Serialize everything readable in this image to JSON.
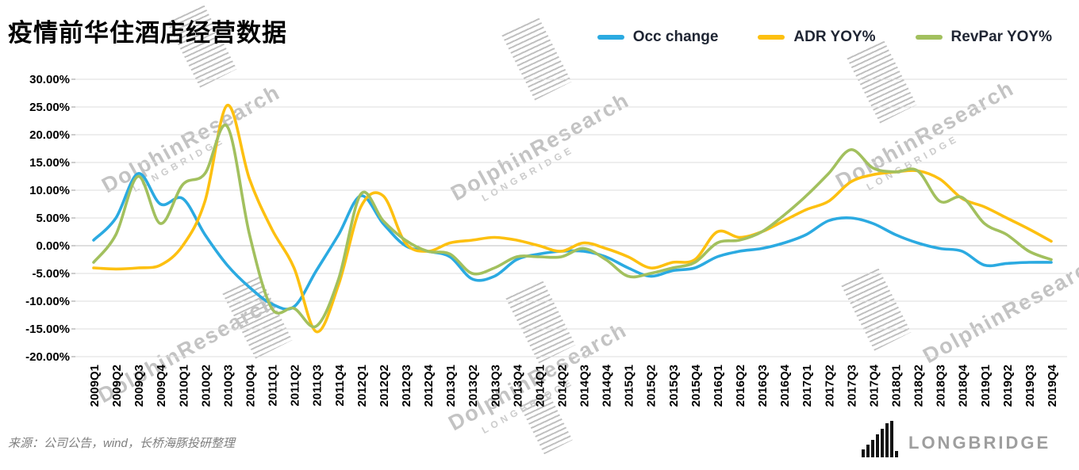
{
  "title": "疫情前华住酒店经营数据",
  "source_note": "来源：公司公告，wind，长桥海豚投研整理",
  "brand": {
    "logo_text": "LONGBRIDGE"
  },
  "watermarks": {
    "dolphin": "DolphinResearch",
    "longbridge": "LONGBRIDGE"
  },
  "chart_data": {
    "type": "line",
    "title": "疫情前华住酒店经营数据",
    "xlabel": "",
    "ylabel": "",
    "ylim": [
      -20,
      30
    ],
    "ytick_step": 5,
    "ytick_format": "percent-2dp",
    "grid": true,
    "legend_position": "top-right",
    "categories": [
      "2009Q1",
      "2009Q2",
      "2009Q3",
      "2009Q4",
      "2010Q1",
      "2010Q2",
      "2010Q3",
      "2010Q4",
      "2011Q1",
      "2011Q2",
      "2011Q3",
      "2011Q4",
      "2012Q1",
      "2012Q2",
      "2012Q3",
      "2012Q4",
      "2013Q1",
      "2013Q2",
      "2013Q3",
      "2013Q4",
      "2014Q1",
      "2014Q2",
      "2014Q3",
      "2014Q4",
      "2015Q1",
      "2015Q2",
      "2015Q3",
      "2015Q4",
      "2016Q1",
      "2016Q2",
      "2016Q3",
      "2016Q4",
      "2017Q1",
      "2017Q2",
      "2017Q3",
      "2017Q4",
      "2018Q1",
      "2018Q2",
      "2018Q3",
      "2018Q4",
      "2019Q1",
      "2019Q2",
      "2019Q3",
      "2019Q4"
    ],
    "series": [
      {
        "name": "Occ change",
        "color": "#2BAAE1",
        "values": [
          1,
          5,
          13,
          7.5,
          8.5,
          2,
          -3.5,
          -7.5,
          -10.5,
          -11,
          -4.5,
          2,
          9,
          4,
          0,
          -1,
          -2,
          -6,
          -5.5,
          -2.5,
          -1.5,
          -1,
          -1,
          -2,
          -4,
          -5.5,
          -4.5,
          -4,
          -2,
          -1,
          -0.5,
          0.5,
          2,
          4.5,
          5,
          4,
          2,
          0.5,
          -0.5,
          -1,
          -3.5,
          -3.2,
          -3,
          -3
        ]
      },
      {
        "name": "ADR YOY%",
        "color": "#FDC010",
        "values": [
          -4,
          -4.2,
          -4,
          -3.5,
          0,
          8,
          25.3,
          12,
          3,
          -4,
          -15.5,
          -7,
          7,
          9,
          0.5,
          -1,
          0.5,
          1,
          1.5,
          1,
          0,
          -1,
          0.5,
          -0.5,
          -2,
          -4,
          -3,
          -2.5,
          2.5,
          1.5,
          2.5,
          4.5,
          6.5,
          8,
          11.5,
          12.8,
          13.3,
          13.5,
          12,
          8.5,
          7,
          5,
          3,
          0.8
        ]
      },
      {
        "name": "RevPar YOY%",
        "color": "#A2C05E",
        "values": [
          -3,
          2,
          12.5,
          4,
          11,
          13,
          21.5,
          2,
          -11.3,
          -11.3,
          -14.5,
          -6,
          9.3,
          4.5,
          1,
          -1,
          -1.5,
          -5,
          -4,
          -2,
          -2,
          -2,
          -0.5,
          -2.5,
          -5.5,
          -5,
          -4,
          -3,
          0.5,
          1,
          2.5,
          5.5,
          9,
          13,
          17.3,
          14,
          13.3,
          13.5,
          8,
          8.7,
          4,
          2,
          -1,
          -2.5
        ]
      }
    ]
  }
}
